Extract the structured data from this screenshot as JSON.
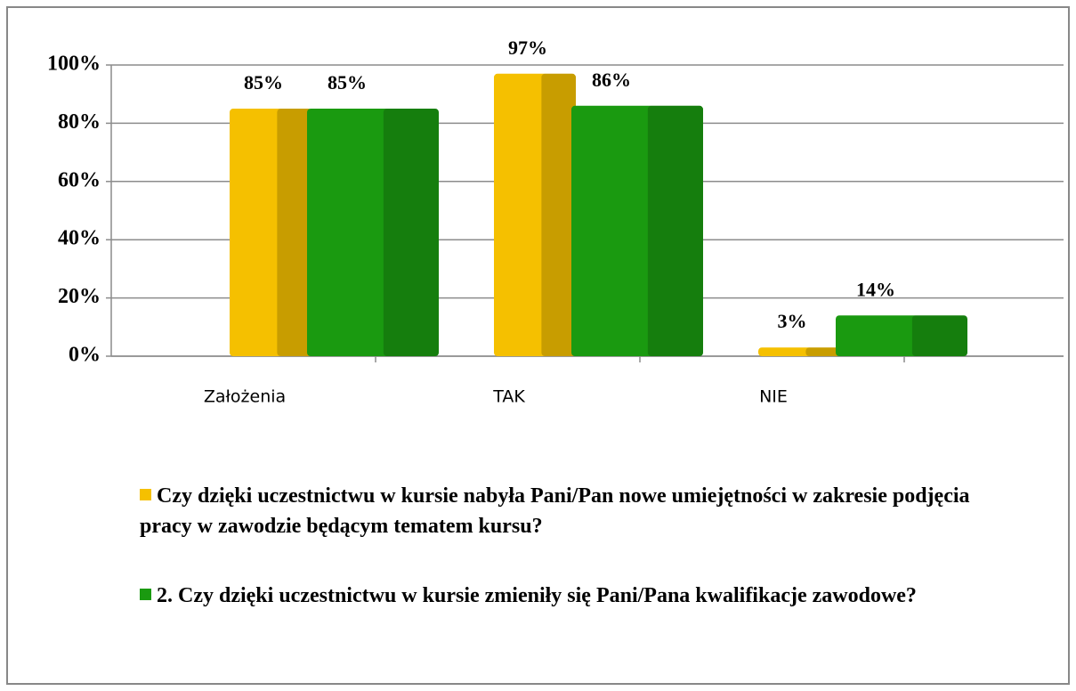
{
  "chart_data": {
    "type": "bar",
    "categories": [
      "Założenia",
      "TAK",
      "NIE"
    ],
    "series": [
      {
        "name": "Czy dzięki uczestnictwu w kursie nabyła Pani/Pan nowe umiejętności w zakresie podjęcia pracy w zawodzie będącym tematem kursu?",
        "color": "#f5c000",
        "values": [
          85,
          97,
          3
        ],
        "value_labels": [
          "85%",
          "97%",
          "3%"
        ]
      },
      {
        "name": "2. Czy dzięki uczestnictwu w kursie zmieniły się Pani/Pana kwalifikacje zawodowe?",
        "color": "#1a9a10",
        "values": [
          85,
          86,
          14
        ],
        "value_labels": [
          "85%",
          "86%",
          "14%"
        ]
      }
    ],
    "ylim": [
      0,
      100
    ],
    "yticks": [
      {
        "value": 0,
        "label": "0%"
      },
      {
        "value": 20,
        "label": "20%"
      },
      {
        "value": 40,
        "label": "40%"
      },
      {
        "value": 60,
        "label": "60%"
      },
      {
        "value": 80,
        "label": "80%"
      },
      {
        "value": 100,
        "label": "100%"
      }
    ],
    "grid": true
  }
}
